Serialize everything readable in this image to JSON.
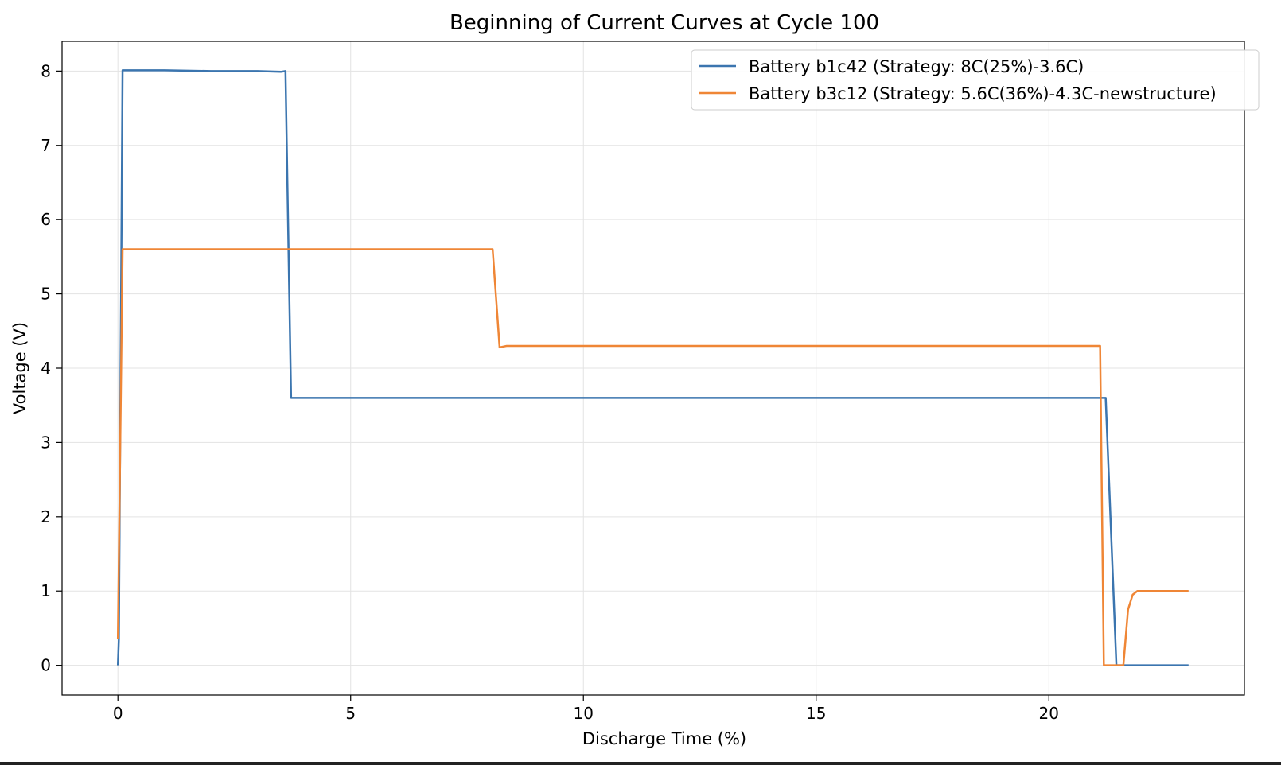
{
  "chart_data": {
    "type": "line",
    "title": "Beginning of Current Curves at Cycle 100",
    "xlabel": "Discharge Time (%)",
    "ylabel": "Voltage (V)",
    "xlim": [
      -1.2,
      24.2
    ],
    "ylim": [
      -0.4,
      8.4
    ],
    "xticks": [
      0,
      5,
      10,
      15,
      20
    ],
    "yticks": [
      0,
      1,
      2,
      3,
      4,
      5,
      6,
      7,
      8
    ],
    "xtick_labels": [
      "0",
      "5",
      "10",
      "15",
      "20"
    ],
    "ytick_labels": [
      "0",
      "1",
      "2",
      "3",
      "4",
      "5",
      "6",
      "7",
      "8"
    ],
    "grid": true,
    "legend_position": "top-right",
    "series": [
      {
        "name": "Battery b1c42 (Strategy: 8C(25%)-3.6C)",
        "color": "#3b75af",
        "x": [
          0,
          0.02,
          0.1,
          1.0,
          2.0,
          3.0,
          3.5,
          3.6,
          3.72,
          5,
          10,
          15,
          20,
          21.1,
          21.22,
          21.45,
          21.5,
          22,
          23
        ],
        "y": [
          0,
          0.35,
          8.01,
          8.01,
          8.0,
          8.0,
          7.99,
          8.0,
          3.6,
          3.6,
          3.6,
          3.6,
          3.6,
          3.6,
          3.6,
          0.0,
          0.0,
          0.0,
          0.0
        ]
      },
      {
        "name": "Battery b3c12 (Strategy: 5.6C(36%)-4.3C-newstructure)",
        "color": "#ef8636",
        "x": [
          0,
          0.1,
          1,
          3,
          5,
          7,
          8.05,
          8.2,
          8.35,
          8.5,
          10,
          15,
          20,
          21.1,
          21.18,
          21.5,
          21.6,
          21.7,
          21.8,
          21.9,
          22,
          23
        ],
        "y": [
          0.35,
          5.6,
          5.6,
          5.6,
          5.6,
          5.6,
          5.6,
          4.28,
          4.3,
          4.3,
          4.3,
          4.3,
          4.3,
          4.3,
          0.0,
          0.0,
          0.0,
          0.75,
          0.95,
          1.0,
          1.0,
          1.0
        ]
      }
    ]
  }
}
